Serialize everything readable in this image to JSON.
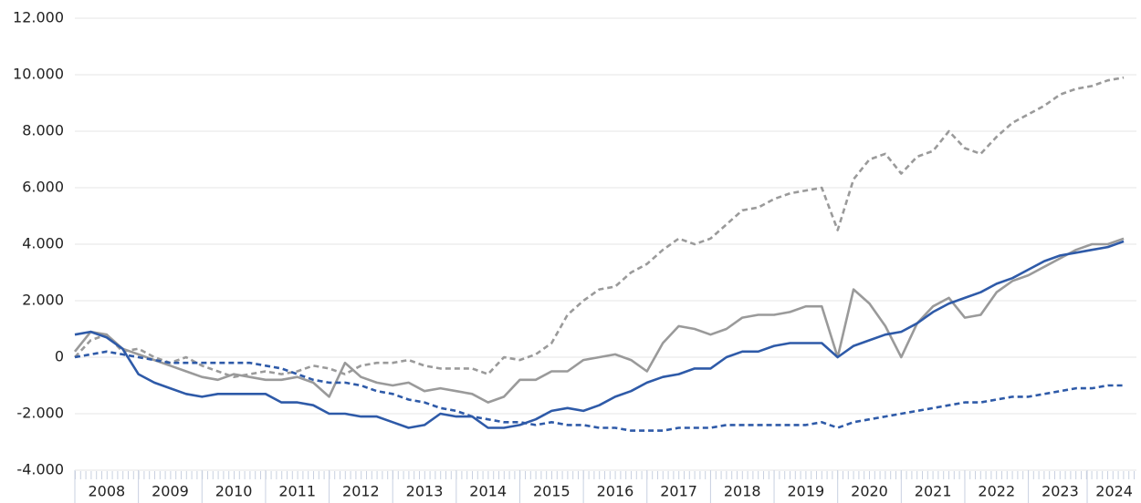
{
  "chart_data": {
    "type": "line",
    "x": [
      2008,
      2008.25,
      2008.5,
      2008.75,
      2009,
      2009.25,
      2009.5,
      2009.75,
      2010,
      2010.25,
      2010.5,
      2010.75,
      2011,
      2011.25,
      2011.5,
      2011.75,
      2012,
      2012.25,
      2012.5,
      2012.75,
      2013,
      2013.25,
      2013.5,
      2013.75,
      2014,
      2014.25,
      2014.5,
      2014.75,
      2015,
      2015.25,
      2015.5,
      2015.75,
      2016,
      2016.25,
      2016.5,
      2016.75,
      2017,
      2017.25,
      2017.5,
      2017.75,
      2018,
      2018.25,
      2018.5,
      2018.75,
      2019,
      2019.25,
      2019.5,
      2019.75,
      2020,
      2020.25,
      2020.5,
      2020.75,
      2021,
      2021.25,
      2021.5,
      2021.75,
      2022,
      2022.25,
      2022.5,
      2022.75,
      2023,
      2023.25,
      2023.5,
      2023.75,
      2024,
      2024.25,
      2024.5
    ],
    "series": [
      {
        "color": "#9a9a9a",
        "dash": true,
        "values": [
          0,
          600,
          800,
          200,
          300,
          0,
          -200,
          0,
          -300,
          -500,
          -700,
          -600,
          -500,
          -600,
          -500,
          -300,
          -400,
          -600,
          -300,
          -200,
          -200,
          -100,
          -300,
          -400,
          -400,
          -400,
          -600,
          0,
          -100,
          100,
          500,
          1500,
          2000,
          2400,
          2500,
          3000,
          3300,
          3800,
          4200,
          4000,
          4200,
          4700,
          5200,
          5300,
          5600,
          5800,
          5900,
          6000,
          4500,
          6300,
          7000,
          7200,
          6500,
          7100,
          7300,
          8000,
          7400,
          7200,
          7800,
          8300,
          8600,
          8900,
          9300,
          9500,
          9600,
          9800,
          9900
        ]
      },
      {
        "color": "#9a9a9a",
        "dash": false,
        "values": [
          200,
          900,
          800,
          300,
          100,
          -100,
          -300,
          -500,
          -700,
          -800,
          -600,
          -700,
          -800,
          -800,
          -700,
          -900,
          -1400,
          -200,
          -700,
          -900,
          -1000,
          -900,
          -1200,
          -1100,
          -1200,
          -1300,
          -1600,
          -1400,
          -800,
          -800,
          -500,
          -500,
          -100,
          0,
          100,
          -100,
          -500,
          500,
          1100,
          1000,
          800,
          1000,
          1400,
          1500,
          1500,
          1600,
          1800,
          1800,
          0,
          2400,
          1900,
          1100,
          0,
          1200,
          1800,
          2100,
          1400,
          1500,
          2300,
          2700,
          2900,
          3200,
          3500,
          3800,
          4000,
          4000,
          4200
        ]
      },
      {
        "color": "#2e5aa8",
        "dash": false,
        "values": [
          800,
          900,
          700,
          300,
          -600,
          -900,
          -1100,
          -1300,
          -1400,
          -1300,
          -1300,
          -1300,
          -1300,
          -1600,
          -1600,
          -1700,
          -2000,
          -2000,
          -2100,
          -2100,
          -2300,
          -2500,
          -2400,
          -2000,
          -2100,
          -2100,
          -2500,
          -2500,
          -2400,
          -2200,
          -1900,
          -1800,
          -1900,
          -1700,
          -1400,
          -1200,
          -900,
          -700,
          -600,
          -400,
          -400,
          0,
          200,
          200,
          400,
          500,
          500,
          500,
          0,
          400,
          600,
          800,
          900,
          1200,
          1600,
          1900,
          2100,
          2300,
          2600,
          2800,
          3100,
          3400,
          3600,
          3700,
          3800,
          3900,
          4100
        ]
      },
      {
        "color": "#2e5aa8",
        "dash": true,
        "values": [
          0,
          100,
          200,
          100,
          0,
          -100,
          -200,
          -200,
          -200,
          -200,
          -200,
          -200,
          -300,
          -400,
          -600,
          -800,
          -900,
          -900,
          -1000,
          -1200,
          -1300,
          -1500,
          -1600,
          -1800,
          -1900,
          -2100,
          -2200,
          -2300,
          -2300,
          -2400,
          -2300,
          -2400,
          -2400,
          -2500,
          -2500,
          -2600,
          -2600,
          -2600,
          -2500,
          -2500,
          -2500,
          -2400,
          -2400,
          -2400,
          -2400,
          -2400,
          -2400,
          -2300,
          -2500,
          -2300,
          -2200,
          -2100,
          -2000,
          -1900,
          -1800,
          -1700,
          -1600,
          -1600,
          -1500,
          -1400,
          -1400,
          -1300,
          -1200,
          -1100,
          -1100,
          -1000,
          -1000
        ]
      }
    ],
    "xlim": [
      2008,
      2024.7
    ],
    "xticks": [
      {
        "value": 2008.5,
        "label": "2008"
      },
      {
        "value": 2009.5,
        "label": "2009"
      },
      {
        "value": 2010.5,
        "label": "2010"
      },
      {
        "value": 2011.5,
        "label": "2011"
      },
      {
        "value": 2012.5,
        "label": "2012"
      },
      {
        "value": 2013.5,
        "label": "2013"
      },
      {
        "value": 2014.5,
        "label": "2014"
      },
      {
        "value": 2015.5,
        "label": "2015"
      },
      {
        "value": 2016.5,
        "label": "2016"
      },
      {
        "value": 2017.5,
        "label": "2017"
      },
      {
        "value": 2018.5,
        "label": "2018"
      },
      {
        "value": 2019.5,
        "label": "2019"
      },
      {
        "value": 2020.5,
        "label": "2020"
      },
      {
        "value": 2021.5,
        "label": "2021"
      },
      {
        "value": 2022.5,
        "label": "2022"
      },
      {
        "value": 2023.5,
        "label": "2023"
      },
      {
        "value": 2024.35,
        "label": "2024"
      }
    ],
    "ylim": [
      -4000,
      12000
    ],
    "yticks": [
      {
        "value": -4000,
        "label": "-4.000"
      },
      {
        "value": -2000,
        "label": "-2.000"
      },
      0,
      {
        "value": 2000,
        "label": "2.000"
      },
      {
        "value": 4000,
        "label": "4.000"
      },
      {
        "value": 6000,
        "label": "6.000"
      },
      {
        "value": 8000,
        "label": "8.000"
      },
      {
        "value": 10000,
        "label": "10.000"
      },
      {
        "value": 12000,
        "label": "12.000"
      }
    ],
    "grid": true
  }
}
